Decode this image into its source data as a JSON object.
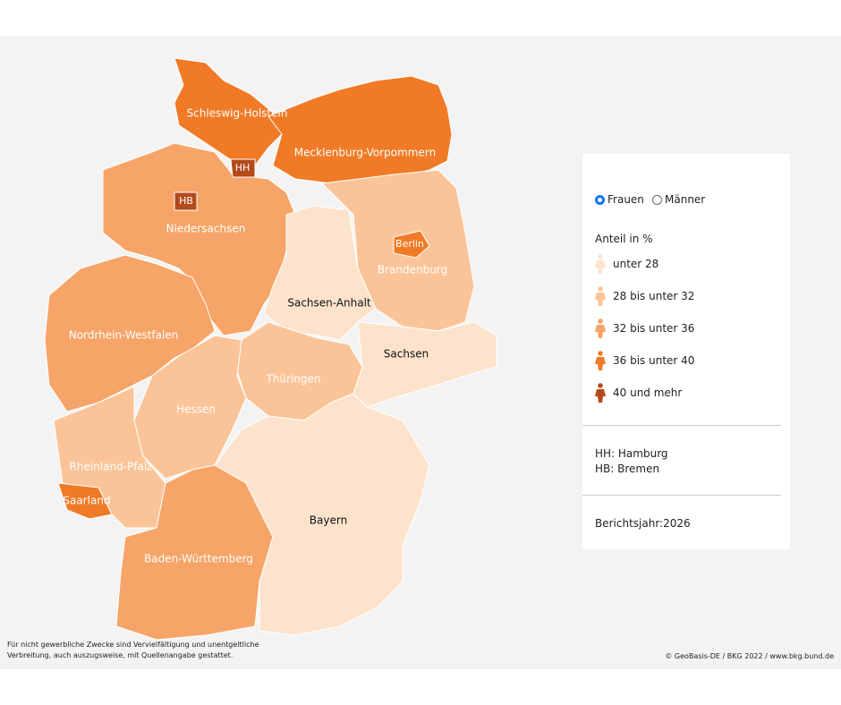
{
  "map": {
    "states": [
      {
        "label": "Schleswig-Holstein",
        "color": "#f07a26"
      },
      {
        "label": "Mecklenburg-Vorpommern",
        "color": "#f07a26"
      },
      {
        "label": "Niedersachsen",
        "color": "#f6a467"
      },
      {
        "label": "Nordrhein-Westfalen",
        "color": "#f6a467"
      },
      {
        "label": "Sachsen-Anhalt",
        "color": "#fde3cc"
      },
      {
        "label": "Brandenburg",
        "color": "#fbc498"
      },
      {
        "label": "Sachsen",
        "color": "#fde3cc"
      },
      {
        "label": "Thüringen",
        "color": "#fbc498"
      },
      {
        "label": "Hessen",
        "color": "#fbc498"
      },
      {
        "label": "Rheinland-Pfalz",
        "color": "#fbc498"
      },
      {
        "label": "Saarland",
        "color": "#f07a26"
      },
      {
        "label": "Baden-Württemberg",
        "color": "#f6a467"
      },
      {
        "label": "Bayern",
        "color": "#fde3cc"
      },
      {
        "label": "HH",
        "color": "#b34a1a"
      },
      {
        "label": "HB",
        "color": "#b34a1a"
      },
      {
        "label": "Berlin",
        "color": "#f07a26"
      }
    ],
    "disclaimer": [
      "Für nicht gewerbliche Zwecke sind Vervielfältigung und unentgeltliche",
      "Verbreitung, auch auszugsweise, mit Quellenangabe gestattet."
    ],
    "copyright": "© GeoBasis-DE / BKG 2022 / www.bkg.bund.de"
  },
  "panel": {
    "options": [
      "Frauen",
      "Männer"
    ],
    "legend_title": "Anteil in %",
    "legend": [
      {
        "label": "unter 28",
        "color": "#fde3cc"
      },
      {
        "label": "28 bis unter 32",
        "color": "#fbc498"
      },
      {
        "label": "32 bis unter 36",
        "color": "#f6a467"
      },
      {
        "label": "36 bis unter 40",
        "color": "#f07a26"
      },
      {
        "label": "40 und mehr",
        "color": "#b34a1a"
      }
    ],
    "abbreviations": [
      "HH: Hamburg",
      "HB: Bremen"
    ],
    "report_year": "Berichtsjahr:2026"
  }
}
